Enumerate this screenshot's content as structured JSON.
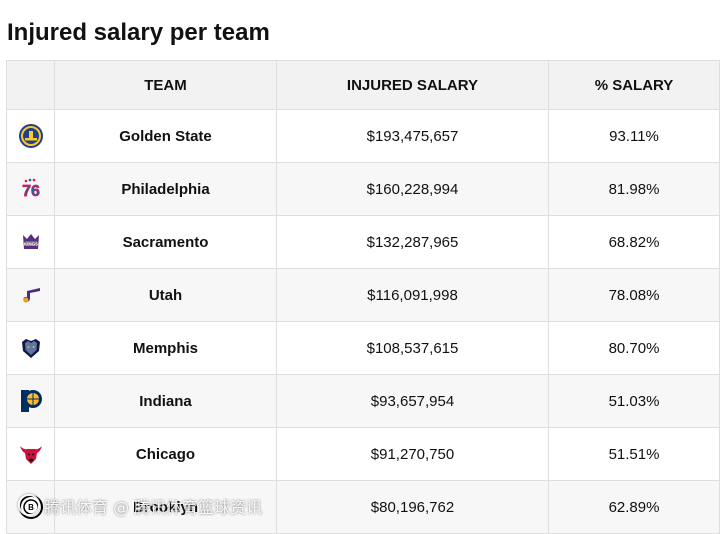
{
  "page": {
    "title": "Injured salary per team"
  },
  "table": {
    "headers": {
      "logo": "",
      "team": "TEAM",
      "injured_salary": "INJURED SALARY",
      "pct_salary": "% SALARY"
    },
    "rows": [
      {
        "team": "Golden State",
        "injured_salary": "$193,475,657",
        "pct_salary": "93.11%",
        "logo_icon": "warriors-logo-icon",
        "logo_color": "#1D428A"
      },
      {
        "team": "Philadelphia",
        "injured_salary": "$160,228,994",
        "pct_salary": "81.98%",
        "logo_icon": "76ers-logo-icon",
        "logo_color": "#ED174C"
      },
      {
        "team": "Sacramento",
        "injured_salary": "$132,287,965",
        "pct_salary": "68.82%",
        "logo_icon": "kings-logo-icon",
        "logo_color": "#5A2D81"
      },
      {
        "team": "Utah",
        "injured_salary": "$116,091,998",
        "pct_salary": "78.08%",
        "logo_icon": "jazz-logo-icon",
        "logo_color": "#4B2C85"
      },
      {
        "team": "Memphis",
        "injured_salary": "$108,537,615",
        "pct_salary": "80.70%",
        "logo_icon": "grizzlies-logo-icon",
        "logo_color": "#5D76A9"
      },
      {
        "team": "Indiana",
        "injured_salary": "$93,657,954",
        "pct_salary": "51.03%",
        "logo_icon": "pacers-logo-icon",
        "logo_color": "#002D62"
      },
      {
        "team": "Chicago",
        "injured_salary": "$91,270,750",
        "pct_salary": "51.51%",
        "logo_icon": "bulls-logo-icon",
        "logo_color": "#CE1141"
      },
      {
        "team": "Brooklyn",
        "injured_salary": "$80,196,762",
        "pct_salary": "62.89%",
        "logo_icon": "nets-logo-icon",
        "logo_color": "#000000"
      }
    ]
  },
  "watermark": {
    "text": "腾讯体育 @ 腾讯体育篮球资讯"
  }
}
